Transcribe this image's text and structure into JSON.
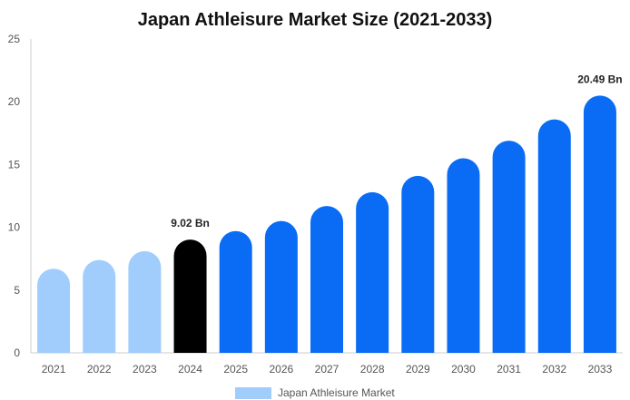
{
  "chart_data": {
    "type": "bar",
    "title": "Japan Athleisure Market Size (2021-2033)",
    "xlabel": "",
    "ylabel": "",
    "ylim": [
      0,
      25
    ],
    "yticks": [
      0,
      5,
      10,
      15,
      20,
      25
    ],
    "grid": false,
    "legend_position": "bottom",
    "categories": [
      "2021",
      "2022",
      "2023",
      "2024",
      "2025",
      "2026",
      "2027",
      "2028",
      "2029",
      "2030",
      "2031",
      "2032",
      "2033"
    ],
    "series": [
      {
        "name": "Japan Athleisure Market",
        "values": [
          6.7,
          7.4,
          8.1,
          9.02,
          9.7,
          10.5,
          11.7,
          12.8,
          14.1,
          15.5,
          16.9,
          18.6,
          20.49
        ]
      }
    ],
    "data_labels": [
      {
        "category": "2024",
        "text": "9.02 Bn"
      },
      {
        "category": "2033",
        "text": "20.49 Bn"
      }
    ],
    "colors": {
      "historical": "#a0cdfc",
      "current": "#000000",
      "forecast": "#0a6cf5",
      "legend_swatch": "#a0cdfc",
      "axis": "#cccccc",
      "tick_text": "#555555"
    },
    "historical_categories": [
      "2021",
      "2022",
      "2023"
    ],
    "current_category": "2024"
  }
}
